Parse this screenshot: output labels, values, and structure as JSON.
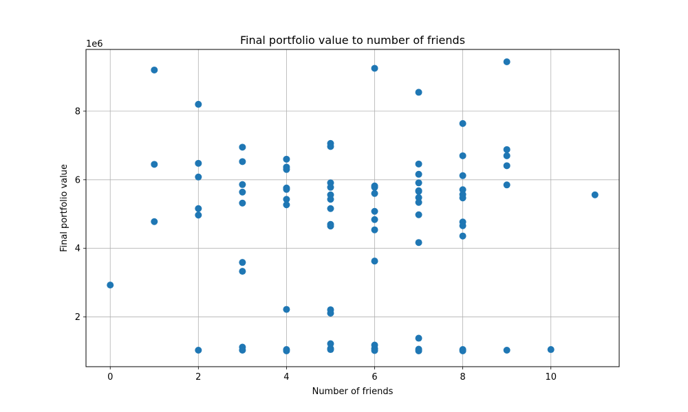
{
  "chart_data": {
    "type": "scatter",
    "title": "Final portfolio value to number of friends",
    "xlabel": "Number of friends",
    "ylabel": "Final portfolio value",
    "y_scale_note": "1e6",
    "xlim": [
      -0.55,
      11.55
    ],
    "ylim": [
      0.55,
      9.8
    ],
    "xticks": [
      0,
      2,
      4,
      6,
      8,
      10
    ],
    "yticks": [
      2,
      4,
      6,
      8
    ],
    "grid": true,
    "marker_color": "#1f77b4",
    "points": [
      [
        0,
        2.93
      ],
      [
        1,
        9.2
      ],
      [
        1,
        6.45
      ],
      [
        1,
        4.78
      ],
      [
        2,
        8.2
      ],
      [
        2,
        6.48
      ],
      [
        2,
        6.08
      ],
      [
        2,
        5.16
      ],
      [
        2,
        4.97
      ],
      [
        2,
        1.03
      ],
      [
        3,
        6.95
      ],
      [
        3,
        6.53
      ],
      [
        3,
        5.86
      ],
      [
        3,
        5.64
      ],
      [
        3,
        5.32
      ],
      [
        3,
        3.59
      ],
      [
        3,
        3.33
      ],
      [
        3,
        1.12
      ],
      [
        3,
        1.03
      ],
      [
        4,
        6.6
      ],
      [
        4,
        6.37
      ],
      [
        4,
        6.3
      ],
      [
        4,
        5.76
      ],
      [
        4,
        5.72
      ],
      [
        4,
        5.43
      ],
      [
        4,
        5.27
      ],
      [
        4,
        2.22
      ],
      [
        4,
        1.05
      ],
      [
        4,
        1.01
      ],
      [
        5,
        7.06
      ],
      [
        5,
        6.97
      ],
      [
        5,
        5.91
      ],
      [
        5,
        5.78
      ],
      [
        5,
        5.56
      ],
      [
        5,
        5.43
      ],
      [
        5,
        5.16
      ],
      [
        5,
        4.7
      ],
      [
        5,
        4.65
      ],
      [
        5,
        2.21
      ],
      [
        5,
        2.11
      ],
      [
        5,
        1.22
      ],
      [
        5,
        1.08
      ],
      [
        5,
        1.05
      ],
      [
        6,
        9.25
      ],
      [
        6,
        5.82
      ],
      [
        6,
        5.78
      ],
      [
        6,
        5.6
      ],
      [
        6,
        5.08
      ],
      [
        6,
        4.84
      ],
      [
        6,
        4.54
      ],
      [
        6,
        3.63
      ],
      [
        6,
        1.18
      ],
      [
        6,
        1.08
      ],
      [
        6,
        1.02
      ],
      [
        7,
        8.55
      ],
      [
        7,
        6.46
      ],
      [
        7,
        6.16
      ],
      [
        7,
        5.91
      ],
      [
        7,
        5.68
      ],
      [
        7,
        5.66
      ],
      [
        7,
        5.48
      ],
      [
        7,
        5.34
      ],
      [
        7,
        4.98
      ],
      [
        7,
        4.17
      ],
      [
        7,
        1.38
      ],
      [
        7,
        1.06
      ],
      [
        7,
        1.01
      ],
      [
        8,
        7.64
      ],
      [
        8,
        6.7
      ],
      [
        8,
        6.12
      ],
      [
        8,
        5.71
      ],
      [
        8,
        5.57
      ],
      [
        8,
        5.47
      ],
      [
        8,
        4.77
      ],
      [
        8,
        4.66
      ],
      [
        8,
        4.36
      ],
      [
        8,
        1.05
      ],
      [
        8,
        1.01
      ],
      [
        9,
        9.44
      ],
      [
        9,
        6.88
      ],
      [
        9,
        6.7
      ],
      [
        9,
        6.41
      ],
      [
        9,
        5.85
      ],
      [
        9,
        1.03
      ],
      [
        10,
        1.05
      ],
      [
        11,
        5.56
      ]
    ]
  }
}
